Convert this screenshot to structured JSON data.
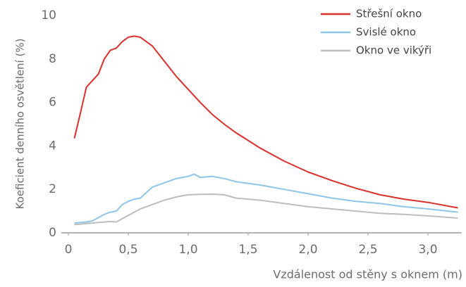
{
  "chart_data": {
    "type": "line",
    "y_label": "Koeficient denního osvětlení (%)",
    "x_label": "Vzdálenost od stěny s oknem (m)",
    "x": [
      0.05,
      0.1,
      0.15,
      0.2,
      0.25,
      0.3,
      0.35,
      0.4,
      0.45,
      0.5,
      0.55,
      0.6,
      0.7,
      0.8,
      0.9,
      1.0,
      1.05,
      1.1,
      1.2,
      1.3,
      1.4,
      1.6,
      1.8,
      2.0,
      2.2,
      2.4,
      2.6,
      2.8,
      3.0,
      3.25
    ],
    "series": [
      {
        "name": "Střešní okno",
        "color": "#d9302c",
        "values": [
          4.35,
          5.5,
          6.7,
          7.0,
          7.3,
          8.0,
          8.4,
          8.5,
          8.8,
          9.0,
          9.05,
          9.0,
          8.6,
          7.9,
          7.2,
          6.6,
          6.3,
          6.0,
          5.45,
          5.0,
          4.6,
          3.9,
          3.3,
          2.8,
          2.4,
          2.05,
          1.75,
          1.55,
          1.4,
          1.15
        ]
      },
      {
        "name": "Svislé okno",
        "color": "#8ec6e8",
        "values": [
          0.45,
          0.48,
          0.5,
          0.55,
          0.7,
          0.85,
          0.95,
          1.0,
          1.3,
          1.45,
          1.55,
          1.6,
          2.1,
          2.3,
          2.5,
          2.6,
          2.7,
          2.55,
          2.6,
          2.5,
          2.35,
          2.2,
          2.0,
          1.8,
          1.6,
          1.45,
          1.35,
          1.2,
          1.1,
          0.95
        ]
      },
      {
        "name": "Okno ve vikýři",
        "color": "#bdbdbd",
        "values": [
          0.38,
          0.4,
          0.43,
          0.45,
          0.48,
          0.5,
          0.52,
          0.5,
          0.65,
          0.8,
          0.95,
          1.1,
          1.3,
          1.5,
          1.65,
          1.75,
          1.76,
          1.77,
          1.78,
          1.75,
          1.6,
          1.5,
          1.35,
          1.2,
          1.1,
          1.0,
          0.9,
          0.85,
          0.78,
          0.68
        ]
      }
    ],
    "xlim": [
      0,
      3.28
    ],
    "ylim": [
      0,
      10
    ],
    "xticks": [
      0,
      {
        "value": 0.5,
        "label": "0,5"
      },
      {
        "value": 1.0,
        "label": "1,0"
      },
      {
        "value": 1.5,
        "label": "1,5"
      },
      {
        "value": 2.0,
        "label": "2,0"
      },
      {
        "value": 2.5,
        "label": "2,5"
      },
      {
        "value": 3.0,
        "label": "3,0"
      }
    ],
    "yticks": [
      0,
      2,
      4,
      6,
      8,
      10
    ],
    "grid": false,
    "legend": "top-right"
  }
}
